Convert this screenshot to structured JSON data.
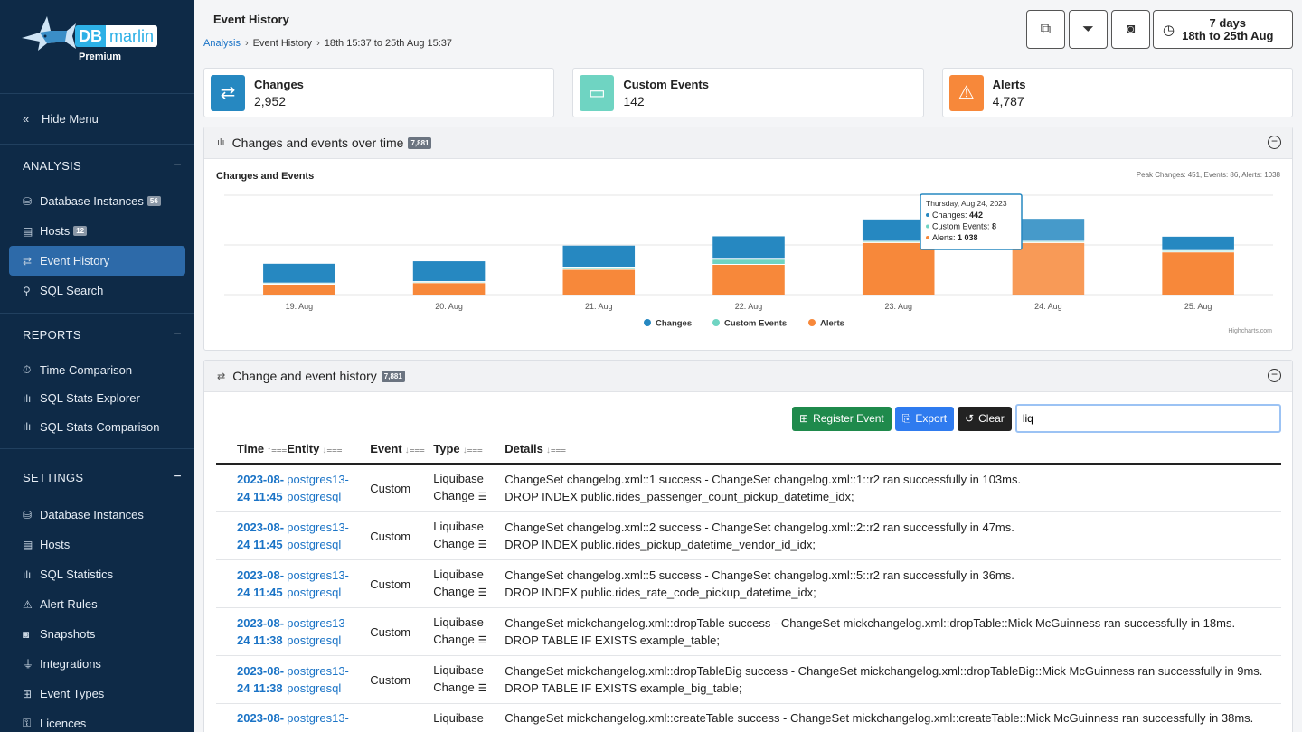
{
  "sidebar": {
    "brand_db": "DB",
    "brand_name": "marlin",
    "brand_tier": "Premium",
    "hide_menu": "Hide Menu",
    "analysis": {
      "title": "ANALYSIS",
      "items": [
        {
          "label": "Database Instances",
          "badge": "56"
        },
        {
          "label": "Hosts",
          "badge": "12"
        },
        {
          "label": "Event History"
        },
        {
          "label": "SQL Search"
        }
      ]
    },
    "reports": {
      "title": "REPORTS",
      "items": [
        {
          "label": "Time Comparison"
        },
        {
          "label": "SQL Stats Explorer"
        },
        {
          "label": "SQL Stats Comparison"
        }
      ]
    },
    "settings": {
      "title": "SETTINGS",
      "items": [
        {
          "label": "Database Instances"
        },
        {
          "label": "Hosts"
        },
        {
          "label": "SQL Statistics"
        },
        {
          "label": "Alert Rules"
        },
        {
          "label": "Snapshots"
        },
        {
          "label": "Integrations"
        },
        {
          "label": "Event Types"
        },
        {
          "label": "Licences"
        }
      ]
    }
  },
  "header": {
    "title": "Event History",
    "breadcrumb": [
      "Analysis",
      "Event History",
      "18th 15:37 to 25th Aug 15:37"
    ],
    "range_top": "7 days",
    "range_bottom": "18th to 25th Aug"
  },
  "cards": [
    {
      "title": "Changes",
      "value": "2,952",
      "color": "#2688c1"
    },
    {
      "title": "Custom Events",
      "value": "142",
      "color": "#6fd4c2"
    },
    {
      "title": "Alerts",
      "value": "4,787",
      "color": "#f7883a"
    }
  ],
  "chart_panel": {
    "title": "Changes and events over time",
    "badge": "7,881",
    "chart_title": "Changes and Events",
    "peak": "Peak Changes: 451, Events: 86, Alerts: 1038",
    "credit": "Highcharts.com",
    "tooltip": {
      "date": "Thursday, Aug 24, 2023",
      "lines": [
        {
          "label": "Changes:",
          "value": "442"
        },
        {
          "label": "Custom Events:",
          "value": "8"
        },
        {
          "label": "Alerts:",
          "value": "1 038"
        }
      ]
    }
  },
  "chart_data": {
    "type": "bar",
    "stacked": true,
    "categories": [
      "19. Aug",
      "20. Aug",
      "21. Aug",
      "22. Aug",
      "23. Aug",
      "24. Aug",
      "25. Aug"
    ],
    "series": [
      {
        "name": "Alerts",
        "color": "#f7883a",
        "values": [
          200,
          230,
          500,
          600,
          1038,
          1038,
          850
        ]
      },
      {
        "name": "Custom Events",
        "color": "#6fd4c2",
        "values": [
          5,
          5,
          10,
          86,
          8,
          8,
          10
        ]
      },
      {
        "name": "Changes",
        "color": "#2688c1",
        "values": [
          380,
          400,
          440,
          451,
          430,
          442,
          270
        ]
      }
    ],
    "ylim": [
      0,
      2000
    ],
    "grid": true,
    "legend": "bottom-center",
    "legend_order": [
      "Changes",
      "Custom Events",
      "Alerts"
    ]
  },
  "table_panel": {
    "title": "Change and event history",
    "badge": "7,881",
    "btn_register": "Register Event",
    "btn_export": "Export",
    "btn_clear": "Clear",
    "search_value": "liq",
    "columns": [
      "Time",
      "Entity",
      "Event",
      "Type",
      "Details"
    ],
    "rows": [
      {
        "time": "2023-08-24 11:45",
        "entity": "postgres13-postgresql",
        "event": "Custom",
        "type": "Liquibase Change",
        "details": [
          "ChangeSet changelog.xml::1 success - ChangeSet changelog.xml::1::r2 ran successfully in 103ms.",
          "DROP INDEX public.rides_passenger_count_pickup_datetime_idx;"
        ]
      },
      {
        "time": "2023-08-24 11:45",
        "entity": "postgres13-postgresql",
        "event": "Custom",
        "type": "Liquibase Change",
        "details": [
          "ChangeSet changelog.xml::2 success - ChangeSet changelog.xml::2::r2 ran successfully in 47ms.",
          "DROP INDEX public.rides_pickup_datetime_vendor_id_idx;"
        ]
      },
      {
        "time": "2023-08-24 11:45",
        "entity": "postgres13-postgresql",
        "event": "Custom",
        "type": "Liquibase Change",
        "details": [
          "ChangeSet changelog.xml::5 success - ChangeSet changelog.xml::5::r2 ran successfully in 36ms.",
          "DROP INDEX public.rides_rate_code_pickup_datetime_idx;"
        ]
      },
      {
        "time": "2023-08-24 11:38",
        "entity": "postgres13-postgresql",
        "event": "Custom",
        "type": "Liquibase Change",
        "details": [
          "ChangeSet mickchangelog.xml::dropTable success - ChangeSet mickchangelog.xml::dropTable::Mick McGuinness ran successfully in 18ms.",
          "DROP TABLE IF EXISTS example_table;"
        ]
      },
      {
        "time": "2023-08-24 11:38",
        "entity": "postgres13-postgresql",
        "event": "Custom",
        "type": "Liquibase Change",
        "details": [
          "ChangeSet mickchangelog.xml::dropTableBig success - ChangeSet mickchangelog.xml::dropTableBig::Mick McGuinness ran successfully in 9ms.",
          "DROP TABLE IF EXISTS example_big_table;"
        ]
      },
      {
        "time": "2023-08-",
        "entity": "postgres13-",
        "event": "",
        "type": "Liquibase",
        "details": [
          "ChangeSet mickchangelog.xml::createTable success - ChangeSet mickchangelog.xml::createTable::Mick McGuinness ran successfully in 38ms."
        ]
      }
    ]
  }
}
